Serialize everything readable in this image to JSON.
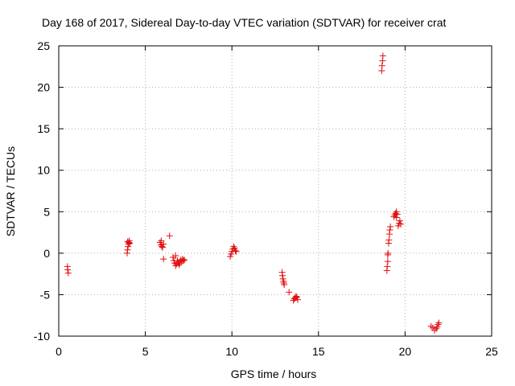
{
  "chart_data": {
    "type": "scatter",
    "title": "Day 168 of 2017, Sidereal Day-to-day VTEC variation (SDTVAR) for receiver crat",
    "xlabel": "GPS time / hours",
    "ylabel": "SDTVAR / TECUs",
    "xlim": [
      0,
      25
    ],
    "ylim": [
      -10,
      25
    ],
    "xticks": [
      0,
      5,
      10,
      15,
      20,
      25
    ],
    "yticks": [
      -10,
      -5,
      0,
      5,
      10,
      15,
      20,
      25
    ],
    "xtick_labels": [
      "0",
      "5",
      "10",
      "15",
      "20",
      "25"
    ],
    "ytick_labels": [
      "-10",
      "-5",
      "0",
      "5",
      "10",
      "15",
      "20",
      "25"
    ],
    "grid": true,
    "marker": "+",
    "color": "#e01010",
    "series": [
      {
        "name": "SDTVAR",
        "points": [
          [
            0.5,
            -1.6
          ],
          [
            0.52,
            -2.0
          ],
          [
            0.55,
            -2.4
          ],
          [
            3.95,
            0.0
          ],
          [
            3.97,
            0.4
          ],
          [
            4.0,
            0.8
          ],
          [
            4.02,
            1.1
          ],
          [
            4.05,
            1.3
          ],
          [
            4.08,
            1.5
          ],
          [
            4.1,
            1.2
          ],
          [
            3.98,
            1.4
          ],
          [
            5.85,
            1.3
          ],
          [
            5.9,
            1.0
          ],
          [
            5.95,
            0.8
          ],
          [
            6.0,
            0.7
          ],
          [
            5.92,
            1.5
          ],
          [
            6.05,
            1.1
          ],
          [
            6.05,
            -0.7
          ],
          [
            6.4,
            2.1
          ],
          [
            6.6,
            -0.5
          ],
          [
            6.65,
            -0.9
          ],
          [
            6.7,
            -1.2
          ],
          [
            6.75,
            -1.5
          ],
          [
            6.8,
            -1.3
          ],
          [
            6.85,
            -0.9
          ],
          [
            6.9,
            -1.1
          ],
          [
            6.95,
            -1.4
          ],
          [
            7.0,
            -1.2
          ],
          [
            7.05,
            -0.8
          ],
          [
            7.1,
            -1.0
          ],
          [
            7.15,
            -0.7
          ],
          [
            7.2,
            -0.9
          ],
          [
            7.25,
            -0.8
          ],
          [
            6.75,
            -0.3
          ],
          [
            9.9,
            -0.4
          ],
          [
            9.95,
            -0.1
          ],
          [
            10.0,
            0.2
          ],
          [
            10.05,
            0.5
          ],
          [
            10.1,
            0.8
          ],
          [
            10.15,
            0.6
          ],
          [
            10.2,
            0.3
          ],
          [
            10.25,
            0.2
          ],
          [
            12.9,
            -2.3
          ],
          [
            12.92,
            -2.7
          ],
          [
            12.95,
            -3.1
          ],
          [
            12.98,
            -3.4
          ],
          [
            13.0,
            -3.6
          ],
          [
            13.02,
            -3.8
          ],
          [
            13.3,
            -4.7
          ],
          [
            13.55,
            -5.7
          ],
          [
            13.6,
            -5.5
          ],
          [
            13.65,
            -5.4
          ],
          [
            13.7,
            -5.2
          ],
          [
            13.75,
            -5.3
          ],
          [
            13.8,
            -5.6
          ],
          [
            18.65,
            22.0
          ],
          [
            18.67,
            22.6
          ],
          [
            18.7,
            23.2
          ],
          [
            18.72,
            23.8
          ],
          [
            18.95,
            -2.1
          ],
          [
            18.97,
            -1.6
          ],
          [
            19.0,
            -1.0
          ],
          [
            19.0,
            -0.2
          ],
          [
            19.02,
            0.0
          ],
          [
            19.05,
            1.2
          ],
          [
            19.07,
            1.6
          ],
          [
            19.1,
            2.3
          ],
          [
            19.12,
            2.8
          ],
          [
            19.15,
            3.2
          ],
          [
            19.35,
            4.4
          ],
          [
            19.4,
            4.6
          ],
          [
            19.45,
            4.8
          ],
          [
            19.5,
            5.0
          ],
          [
            19.55,
            4.7
          ],
          [
            19.5,
            4.3
          ],
          [
            19.6,
            3.3
          ],
          [
            19.65,
            3.6
          ],
          [
            19.7,
            3.9
          ],
          [
            19.75,
            3.5
          ],
          [
            21.5,
            -8.8
          ],
          [
            21.6,
            -9.0
          ],
          [
            21.7,
            -9.3
          ],
          [
            21.8,
            -9.1
          ],
          [
            21.85,
            -8.9
          ],
          [
            21.9,
            -8.6
          ],
          [
            21.95,
            -8.4
          ]
        ]
      }
    ]
  }
}
